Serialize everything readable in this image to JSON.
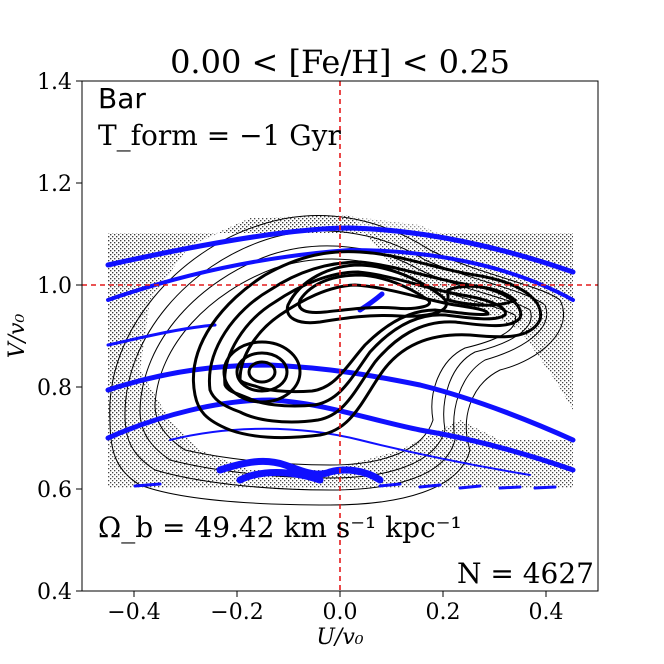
{
  "chart_data": {
    "type": "contour",
    "title": "0.00 < [Fe/H] < 0.25",
    "xlabel": "U/v₀",
    "ylabel": "V/v₀",
    "xlim": [
      -0.5,
      0.5
    ],
    "ylim": [
      0.4,
      1.4
    ],
    "xticks": [
      -0.4,
      -0.2,
      0.0,
      0.2,
      0.4
    ],
    "yticks": [
      0.4,
      0.6,
      0.8,
      1.0,
      1.2,
      1.4
    ],
    "xtick_labels": [
      "−0.4",
      "−0.2",
      "0.0",
      "0.2",
      "0.4"
    ],
    "ytick_labels": [
      "0.4",
      "0.6",
      "0.8",
      "1.0",
      "1.2",
      "1.4"
    ],
    "reference_lines": {
      "x": 0.0,
      "y": 1.0,
      "color": "#e41a1c",
      "style": "dashed"
    },
    "annotations": {
      "model": "Bar",
      "tform": "T_form = −1 Gyr",
      "omega": "Ω_b = 49.42 km s⁻¹ kpc⁻¹",
      "count": "N = 4627"
    },
    "hatched_region": {
      "x": [
        -0.45,
        0.45
      ],
      "y": [
        0.6,
        1.1
      ],
      "pattern": "stipple"
    },
    "density_peaks": [
      {
        "u": -0.15,
        "v": 0.83
      },
      {
        "u": 0.0,
        "v": 0.98
      },
      {
        "u": 0.25,
        "v": 0.97
      }
    ],
    "resonance_color": "#0000ff",
    "contour_color": "#000000"
  }
}
